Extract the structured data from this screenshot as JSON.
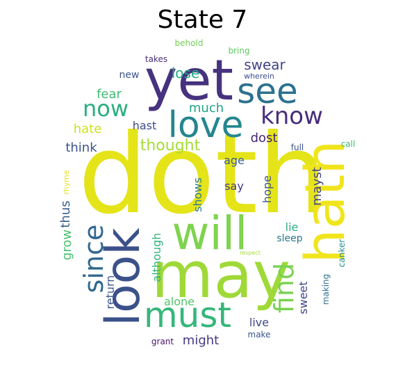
{
  "title": "State 7",
  "words": [
    {
      "text": "doth",
      "color": "#e4e419"
    },
    {
      "text": "may",
      "color": "#9fd938"
    },
    {
      "text": "yet",
      "color": "#46327e"
    },
    {
      "text": "hath",
      "color": "#f0e51c"
    },
    {
      "text": "will",
      "color": "#7fd34e"
    },
    {
      "text": "look",
      "color": "#3b518a"
    },
    {
      "text": "love",
      "color": "#24868e"
    },
    {
      "text": "must",
      "color": "#35b779"
    },
    {
      "text": "see",
      "color": "#2c728e"
    },
    {
      "text": "since",
      "color": "#31688e"
    },
    {
      "text": "find",
      "color": "#7ad151"
    },
    {
      "text": "know",
      "color": "#472d7b"
    },
    {
      "text": "now",
      "color": "#2aaf7f"
    },
    {
      "text": "swear",
      "color": "#414487"
    },
    {
      "text": "lose",
      "color": "#23a983"
    },
    {
      "text": "much",
      "color": "#20a486"
    },
    {
      "text": "fear",
      "color": "#3fbc73"
    },
    {
      "text": "hast",
      "color": "#3e4a89"
    },
    {
      "text": "hate",
      "color": "#cde11d"
    },
    {
      "text": "thought",
      "color": "#a5db36"
    },
    {
      "text": "dost",
      "color": "#482576"
    },
    {
      "text": "think",
      "color": "#3b528b"
    },
    {
      "text": "age",
      "color": "#38598c"
    },
    {
      "text": "shows",
      "color": "#2a788e"
    },
    {
      "text": "say",
      "color": "#453781"
    },
    {
      "text": "hope",
      "color": "#39558c"
    },
    {
      "text": "thus",
      "color": "#365d8d"
    },
    {
      "text": "grow",
      "color": "#4ac16d"
    },
    {
      "text": "mayst",
      "color": "#404588"
    },
    {
      "text": "although",
      "color": "#2db27d"
    },
    {
      "text": "return",
      "color": "#3a548c"
    },
    {
      "text": "lie",
      "color": "#29af7f"
    },
    {
      "text": "sleep",
      "color": "#2a788e"
    },
    {
      "text": "sweet",
      "color": "#414487"
    },
    {
      "text": "making",
      "color": "#2d708e"
    },
    {
      "text": "canker",
      "color": "#238a8d"
    },
    {
      "text": "alone",
      "color": "#51c56a"
    },
    {
      "text": "live",
      "color": "#3e4989"
    },
    {
      "text": "might",
      "color": "#443983"
    },
    {
      "text": "make",
      "color": "#3b528b"
    },
    {
      "text": "grant",
      "color": "#471365"
    },
    {
      "text": "new",
      "color": "#3b528b"
    },
    {
      "text": "takes",
      "color": "#472c7a"
    },
    {
      "text": "behold",
      "color": "#73d056"
    },
    {
      "text": "bring",
      "color": "#5ec962"
    },
    {
      "text": "wherein",
      "color": "#3e4c8a"
    },
    {
      "text": "full",
      "color": "#3a538b"
    },
    {
      "text": "call",
      "color": "#3fbc73"
    },
    {
      "text": "rhyme",
      "color": "#e2e418"
    },
    {
      "text": "respect",
      "color": "#a2da37"
    }
  ]
}
